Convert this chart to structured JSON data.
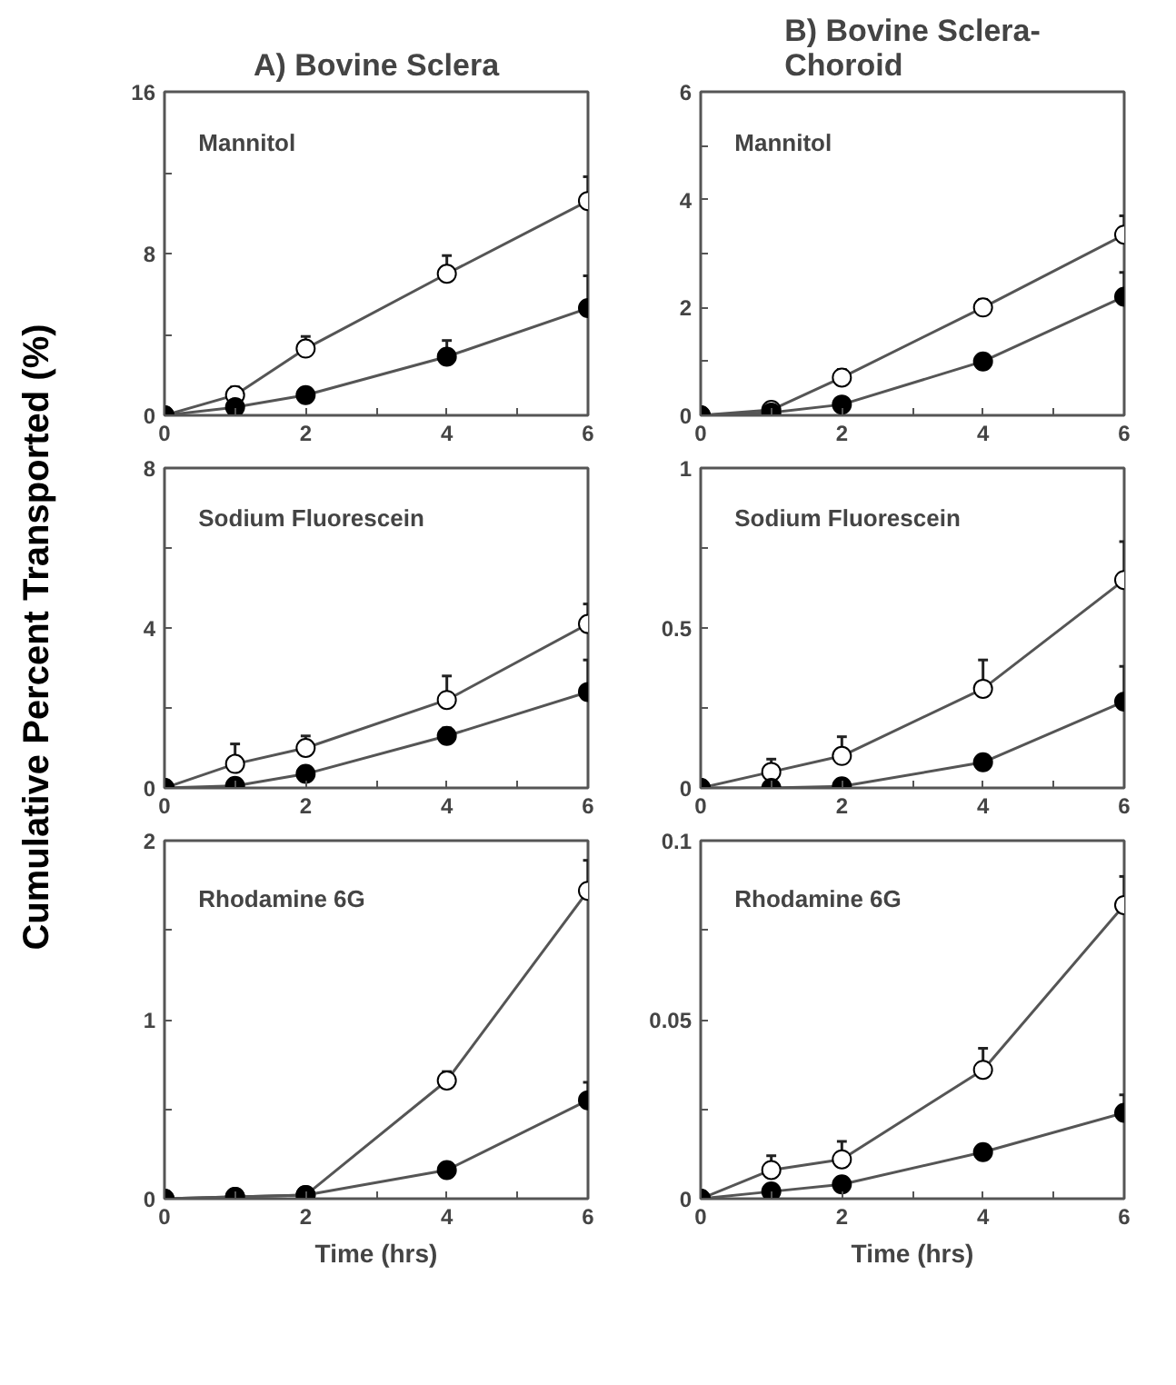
{
  "chart_data": [
    {
      "type": "line",
      "title": "A) Bovine Sclera",
      "annotations": [
        "Mannitol"
      ],
      "x": [
        0,
        1,
        2,
        4,
        6
      ],
      "marker": "circle",
      "grid": false,
      "xlim": [
        0,
        6
      ],
      "xticks": [
        0,
        {
          "value": 1,
          "label": null
        },
        2,
        {
          "value": 3,
          "label": null
        },
        4,
        {
          "value": 5,
          "label": null
        },
        6
      ],
      "ylim": [
        0,
        16
      ],
      "yticks": [
        0,
        {
          "value": 4,
          "label": null
        },
        8,
        {
          "value": 12,
          "label": null
        },
        16
      ],
      "series": [
        {
          "color": "#ffffff",
          "values": [
            0,
            1.0,
            3.3,
            7.0,
            10.6
          ],
          "errors": [
            null,
            [
              1.0,
              1.4
            ],
            [
              3.3,
              3.9
            ],
            [
              7.0,
              7.9
            ],
            [
              10.6,
              11.8
            ]
          ]
        },
        {
          "color": "#000000",
          "values": [
            0,
            0.4,
            1.0,
            2.9,
            5.3
          ],
          "errors": [
            null,
            [
              0.4,
              0.7
            ],
            [
              1.0,
              1.2
            ],
            [
              2.9,
              3.7
            ],
            [
              5.3,
              6.9
            ]
          ]
        }
      ]
    },
    {
      "type": "line",
      "title": "B) Bovine Sclera-\nChoroid",
      "annotations": [
        "Mannitol"
      ],
      "x": [
        0,
        1,
        2,
        4,
        6
      ],
      "marker": "circle",
      "grid": false,
      "xlim": [
        0,
        6
      ],
      "xticks": [
        0,
        {
          "value": 1,
          "label": null
        },
        2,
        {
          "value": 3,
          "label": null
        },
        4,
        {
          "value": 5,
          "label": null
        },
        6
      ],
      "ylim": [
        0,
        6
      ],
      "yticks": [
        0,
        {
          "value": 1,
          "label": null
        },
        2,
        {
          "value": 3,
          "label": null
        },
        4,
        {
          "value": 5,
          "label": null
        },
        6
      ],
      "series": [
        {
          "color": "#ffffff",
          "values": [
            0,
            0.1,
            0.7,
            2.0,
            3.35
          ],
          "errors": [
            null,
            [
              0.1,
              0.15
            ],
            [
              0.7,
              0.85
            ],
            [
              2.0,
              2.15
            ],
            [
              3.35,
              3.7
            ]
          ]
        },
        {
          "color": "#000000",
          "values": [
            0,
            0.05,
            0.2,
            1.0,
            2.2
          ],
          "errors": [
            null,
            null,
            [
              0.2,
              0.3
            ],
            [
              1.0,
              1.1
            ],
            [
              2.2,
              2.65
            ]
          ]
        }
      ]
    },
    {
      "type": "line",
      "ylabel": "Cumulative Percent Transported (%)",
      "annotations": [
        "Sodium Fluorescein"
      ],
      "x": [
        0,
        1,
        2,
        4,
        6
      ],
      "marker": "circle",
      "grid": false,
      "xlim": [
        0,
        6
      ],
      "xticks": [
        0,
        {
          "value": 1,
          "label": null
        },
        2,
        {
          "value": 3,
          "label": null
        },
        4,
        {
          "value": 5,
          "label": null
        },
        6
      ],
      "ylim": [
        0,
        8
      ],
      "yticks": [
        0,
        {
          "value": 2,
          "label": null
        },
        4,
        {
          "value": 6,
          "label": null
        },
        8
      ],
      "series": [
        {
          "color": "#ffffff",
          "values": [
            0,
            0.6,
            1.0,
            2.2,
            4.1
          ],
          "errors": [
            null,
            [
              0.6,
              1.1
            ],
            [
              1.0,
              1.3
            ],
            [
              2.2,
              2.8
            ],
            [
              4.1,
              4.6
            ]
          ]
        },
        {
          "color": "#000000",
          "values": [
            0,
            0.05,
            0.35,
            1.3,
            2.4
          ],
          "errors": [
            null,
            [
              0.05,
              0.15
            ],
            [
              0.35,
              0.45
            ],
            [
              1.3,
              1.5
            ],
            [
              2.4,
              3.2
            ]
          ]
        }
      ]
    },
    {
      "type": "line",
      "annotations": [
        "Sodium Fluorescein"
      ],
      "x": [
        0,
        1,
        2,
        4,
        6
      ],
      "marker": "circle",
      "grid": false,
      "xlim": [
        0,
        6
      ],
      "xticks": [
        0,
        {
          "value": 1,
          "label": null
        },
        2,
        {
          "value": 3,
          "label": null
        },
        4,
        {
          "value": 5,
          "label": null
        },
        6
      ],
      "ylim": [
        0,
        1
      ],
      "yticks": [
        0,
        {
          "value": 0.25,
          "label": null
        },
        0.5,
        {
          "value": 0.75,
          "label": null
        },
        1
      ],
      "series": [
        {
          "color": "#ffffff",
          "values": [
            0,
            0.05,
            0.1,
            0.31,
            0.65
          ],
          "errors": [
            null,
            [
              0.05,
              0.09
            ],
            [
              0.1,
              0.16
            ],
            [
              0.31,
              0.4
            ],
            [
              0.65,
              0.77
            ]
          ]
        },
        {
          "color": "#000000",
          "values": [
            0,
            0,
            0.005,
            0.08,
            0.27
          ],
          "errors": [
            null,
            null,
            null,
            [
              0.08,
              0.1
            ],
            [
              0.27,
              0.38
            ]
          ]
        }
      ]
    },
    {
      "type": "line",
      "xlabel": "Time (hrs)",
      "annotations": [
        "Rhodamine 6G"
      ],
      "x": [
        0,
        1,
        2,
        4,
        6
      ],
      "marker": "circle",
      "grid": false,
      "xlim": [
        0,
        6
      ],
      "xticks": [
        0,
        {
          "value": 1,
          "label": null
        },
        2,
        {
          "value": 3,
          "label": null
        },
        4,
        {
          "value": 5,
          "label": null
        },
        6
      ],
      "ylim": [
        0,
        2
      ],
      "yticks": [
        0,
        {
          "value": 0.5,
          "label": null
        },
        1,
        {
          "value": 1.5,
          "label": null
        },
        2
      ],
      "series": [
        {
          "color": "#ffffff",
          "values": [
            0,
            0.01,
            0.02,
            0.66,
            1.72
          ],
          "errors": [
            null,
            null,
            null,
            [
              0.66,
              0.71
            ],
            [
              1.72,
              1.89
            ]
          ]
        },
        {
          "color": "#000000",
          "values": [
            0,
            0.01,
            0.02,
            0.16,
            0.55
          ],
          "errors": [
            null,
            null,
            null,
            [
              0.16,
              0.18
            ],
            [
              0.55,
              0.65
            ]
          ]
        }
      ]
    },
    {
      "type": "line",
      "xlabel": "Time (hrs)",
      "annotations": [
        "Rhodamine 6G"
      ],
      "x": [
        0,
        1,
        2,
        4,
        6
      ],
      "marker": "circle",
      "grid": false,
      "xlim": [
        0,
        6
      ],
      "xticks": [
        0,
        {
          "value": 1,
          "label": null
        },
        2,
        {
          "value": 3,
          "label": null
        },
        4,
        {
          "value": 5,
          "label": null
        },
        6
      ],
      "ylim": [
        0,
        0.1
      ],
      "yticks": [
        0,
        {
          "value": 0.025,
          "label": null
        },
        0.05,
        {
          "value": 0.075,
          "label": null
        },
        0.1
      ],
      "series": [
        {
          "color": "#ffffff",
          "values": [
            0,
            0.008,
            0.011,
            0.036,
            0.082
          ],
          "errors": [
            null,
            [
              0.008,
              0.012
            ],
            [
              0.011,
              0.016
            ],
            [
              0.036,
              0.042
            ],
            [
              0.082,
              0.09
            ]
          ]
        },
        {
          "color": "#000000",
          "values": [
            0,
            0.002,
            0.004,
            0.013,
            0.024
          ],
          "errors": [
            null,
            null,
            null,
            [
              0.013,
              0.015
            ],
            [
              0.024,
              0.029
            ]
          ]
        }
      ]
    }
  ]
}
